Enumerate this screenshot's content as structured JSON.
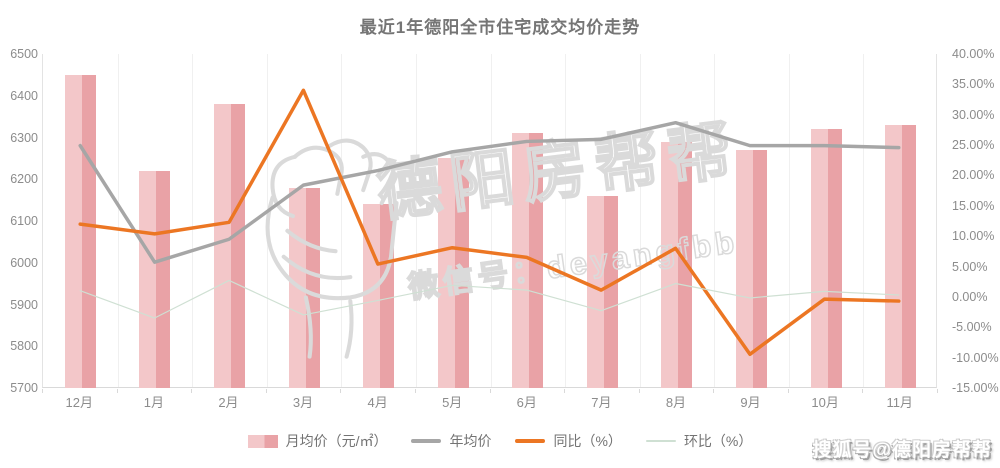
{
  "title": "最近1年德阳全市住宅成交均价走势",
  "watermark": {
    "brand": "德阳房帮帮",
    "wechat": "微信号：deyangfbb",
    "sohu": "搜狐号@德阳房帮帮",
    "fist_icon": "fist-outline-icon"
  },
  "colors": {
    "bar_light": "#f3c7c9",
    "bar_dark": "#e9a2a6",
    "year_avg_line": "#a6a6a6",
    "yoy_line": "#ec7623",
    "mom_line": "#cfe0d3",
    "grid": "#f0f0f0",
    "axis_line": "#d9d9d9",
    "axis_text": "#8c8c8c",
    "title_text": "#757575",
    "watermark_stroke": "#dadada"
  },
  "chart_data": {
    "type": "bar",
    "subtype": "bar-line-combo",
    "title": "最近1年德阳全市住宅成交均价走势",
    "categories": [
      "12月",
      "1月",
      "2月",
      "3月",
      "4月",
      "5月",
      "6月",
      "7月",
      "8月",
      "9月",
      "10月",
      "11月"
    ],
    "series": [
      {
        "name": "月均价（元/㎡）",
        "kind": "bar",
        "axis": "left",
        "values": [
          6450,
          6220,
          6380,
          6180,
          6140,
          6250,
          6310,
          6160,
          6290,
          6270,
          6320,
          6330
        ]
      },
      {
        "name": "年均价",
        "kind": "line",
        "axis": "left",
        "values": [
          6280,
          6000,
          6055,
          6185,
          6220,
          6265,
          6290,
          6295,
          6335,
          6280,
          6280,
          6275
        ]
      },
      {
        "name": "同比（%）",
        "kind": "line",
        "axis": "right",
        "values": [
          11.9,
          10.3,
          12.2,
          34.0,
          5.3,
          8.0,
          6.4,
          1.0,
          7.9,
          -9.6,
          -0.5,
          -0.8
        ]
      },
      {
        "name": "环比（%）",
        "kind": "line",
        "axis": "right",
        "values": [
          0.9,
          -3.6,
          2.6,
          -3.1,
          -0.7,
          1.8,
          1.0,
          -2.4,
          2.1,
          -0.3,
          0.8,
          0.2
        ]
      }
    ],
    "left_axis": {
      "min": 5700,
      "max": 6500,
      "step": 100,
      "ticks": [
        "6500",
        "6400",
        "6300",
        "6200",
        "6100",
        "6000",
        "5900",
        "5800",
        "5700"
      ]
    },
    "right_axis": {
      "min": -15,
      "max": 40,
      "step": 5,
      "ticks": [
        "40.00%",
        "35.00%",
        "30.00%",
        "25.00%",
        "20.00%",
        "15.00%",
        "10.00%",
        "5.00%",
        "0.00%",
        "-5.00%",
        "-10.00%",
        "-15.00%"
      ]
    },
    "grid": "vertical-only",
    "legend_position": "bottom"
  }
}
